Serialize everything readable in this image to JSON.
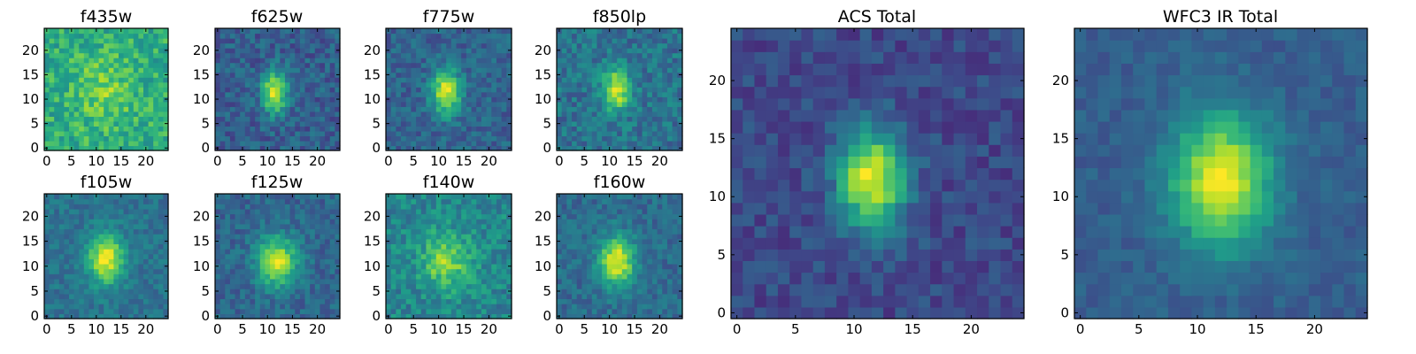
{
  "chart_data": [
    {
      "type": "heatmap",
      "title": "f435w",
      "colormap": "viridis",
      "xlim": [
        0,
        24
      ],
      "ylim": [
        0,
        24
      ],
      "xticks": [
        0,
        5,
        10,
        15,
        20
      ],
      "yticks": [
        0,
        5,
        10,
        15,
        20
      ],
      "peak": {
        "x": 11.5,
        "y": 12.0,
        "sx": 4.0,
        "sy": 5.0
      },
      "peak_level": 0.8,
      "background_level": 0.62,
      "noise": 0.3,
      "seed": 11
    },
    {
      "type": "heatmap",
      "title": "f625w",
      "colormap": "viridis",
      "xlim": [
        0,
        24
      ],
      "ylim": [
        0,
        24
      ],
      "xticks": [
        0,
        5,
        10,
        15,
        20
      ],
      "yticks": [
        0,
        5,
        10,
        15,
        20
      ],
      "peak": {
        "x": 11.5,
        "y": 11.5,
        "sx": 1.8,
        "sy": 3.0
      },
      "peak_level": 0.93,
      "background_level": 0.3,
      "noise": 0.24,
      "seed": 23
    },
    {
      "type": "heatmap",
      "title": "f775w",
      "colormap": "viridis",
      "xlim": [
        0,
        24
      ],
      "ylim": [
        0,
        24
      ],
      "xticks": [
        0,
        5,
        10,
        15,
        20
      ],
      "yticks": [
        0,
        5,
        10,
        15,
        20
      ],
      "peak": {
        "x": 11.5,
        "y": 11.5,
        "sx": 2.0,
        "sy": 3.2
      },
      "peak_level": 0.95,
      "background_level": 0.32,
      "noise": 0.22,
      "seed": 37
    },
    {
      "type": "heatmap",
      "title": "f850lp",
      "colormap": "viridis",
      "xlim": [
        0,
        24
      ],
      "ylim": [
        0,
        24
      ],
      "xticks": [
        0,
        5,
        10,
        15,
        20
      ],
      "yticks": [
        0,
        5,
        10,
        15,
        20
      ],
      "peak": {
        "x": 11.5,
        "y": 12.0,
        "sx": 2.0,
        "sy": 3.0
      },
      "peak_level": 0.93,
      "background_level": 0.38,
      "noise": 0.26,
      "seed": 41
    },
    {
      "type": "heatmap",
      "title": "f105w",
      "colormap": "viridis",
      "xlim": [
        0,
        24
      ],
      "ylim": [
        0,
        24
      ],
      "xticks": [
        0,
        5,
        10,
        15,
        20
      ],
      "yticks": [
        0,
        5,
        10,
        15,
        20
      ],
      "peak": {
        "x": 12.0,
        "y": 11.5,
        "sx": 2.5,
        "sy": 3.5
      },
      "peak_level": 0.97,
      "background_level": 0.38,
      "noise": 0.18,
      "seed": 53
    },
    {
      "type": "heatmap",
      "title": "f125w",
      "colormap": "viridis",
      "xlim": [
        0,
        24
      ],
      "ylim": [
        0,
        24
      ],
      "xticks": [
        0,
        5,
        10,
        15,
        20
      ],
      "yticks": [
        0,
        5,
        10,
        15,
        20
      ],
      "peak": {
        "x": 12.0,
        "y": 11.0,
        "sx": 2.8,
        "sy": 3.5
      },
      "peak_level": 0.92,
      "background_level": 0.33,
      "noise": 0.2,
      "seed": 67
    },
    {
      "type": "heatmap",
      "title": "f140w",
      "colormap": "viridis",
      "xlim": [
        0,
        24
      ],
      "ylim": [
        0,
        24
      ],
      "xticks": [
        0,
        5,
        10,
        15,
        20
      ],
      "yticks": [
        0,
        5,
        10,
        15,
        20
      ],
      "peak": {
        "x": 11.5,
        "y": 11.0,
        "sx": 3.5,
        "sy": 4.0
      },
      "peak_level": 0.82,
      "background_level": 0.45,
      "noise": 0.26,
      "seed": 79
    },
    {
      "type": "heatmap",
      "title": "f160w",
      "colormap": "viridis",
      "xlim": [
        0,
        24
      ],
      "ylim": [
        0,
        24
      ],
      "xticks": [
        0,
        5,
        10,
        15,
        20
      ],
      "yticks": [
        0,
        5,
        10,
        15,
        20
      ],
      "peak": {
        "x": 11.5,
        "y": 11.0,
        "sx": 2.5,
        "sy": 3.5
      },
      "peak_level": 0.97,
      "background_level": 0.35,
      "noise": 0.2,
      "seed": 83
    },
    {
      "type": "heatmap",
      "title": "ACS Total",
      "colormap": "viridis",
      "xlim": [
        0,
        24
      ],
      "ylim": [
        0,
        24
      ],
      "xticks": [
        0,
        5,
        10,
        15,
        20
      ],
      "yticks": [
        0,
        5,
        10,
        15,
        20
      ],
      "peak": {
        "x": 11.5,
        "y": 11.5,
        "sx": 2.0,
        "sy": 3.0
      },
      "peak_level": 0.97,
      "background_level": 0.22,
      "noise": 0.18,
      "seed": 97
    },
    {
      "type": "heatmap",
      "title": "WFC3 IR Total",
      "colormap": "viridis",
      "xlim": [
        0,
        24
      ],
      "ylim": [
        0,
        24
      ],
      "xticks": [
        0,
        5,
        10,
        15,
        20
      ],
      "yticks": [
        0,
        5,
        10,
        15,
        20
      ],
      "peak": {
        "x": 12.0,
        "y": 11.5,
        "sx": 3.0,
        "sy": 4.0
      },
      "peak_level": 0.97,
      "background_level": 0.3,
      "noise": 0.12,
      "seed": 101
    }
  ],
  "colors": {
    "viridis": [
      "#440154",
      "#482878",
      "#3e4989",
      "#31688e",
      "#26828e",
      "#1f9e89",
      "#35b779",
      "#6ece58",
      "#b5de2b",
      "#fde725"
    ],
    "axis": "#000000"
  }
}
